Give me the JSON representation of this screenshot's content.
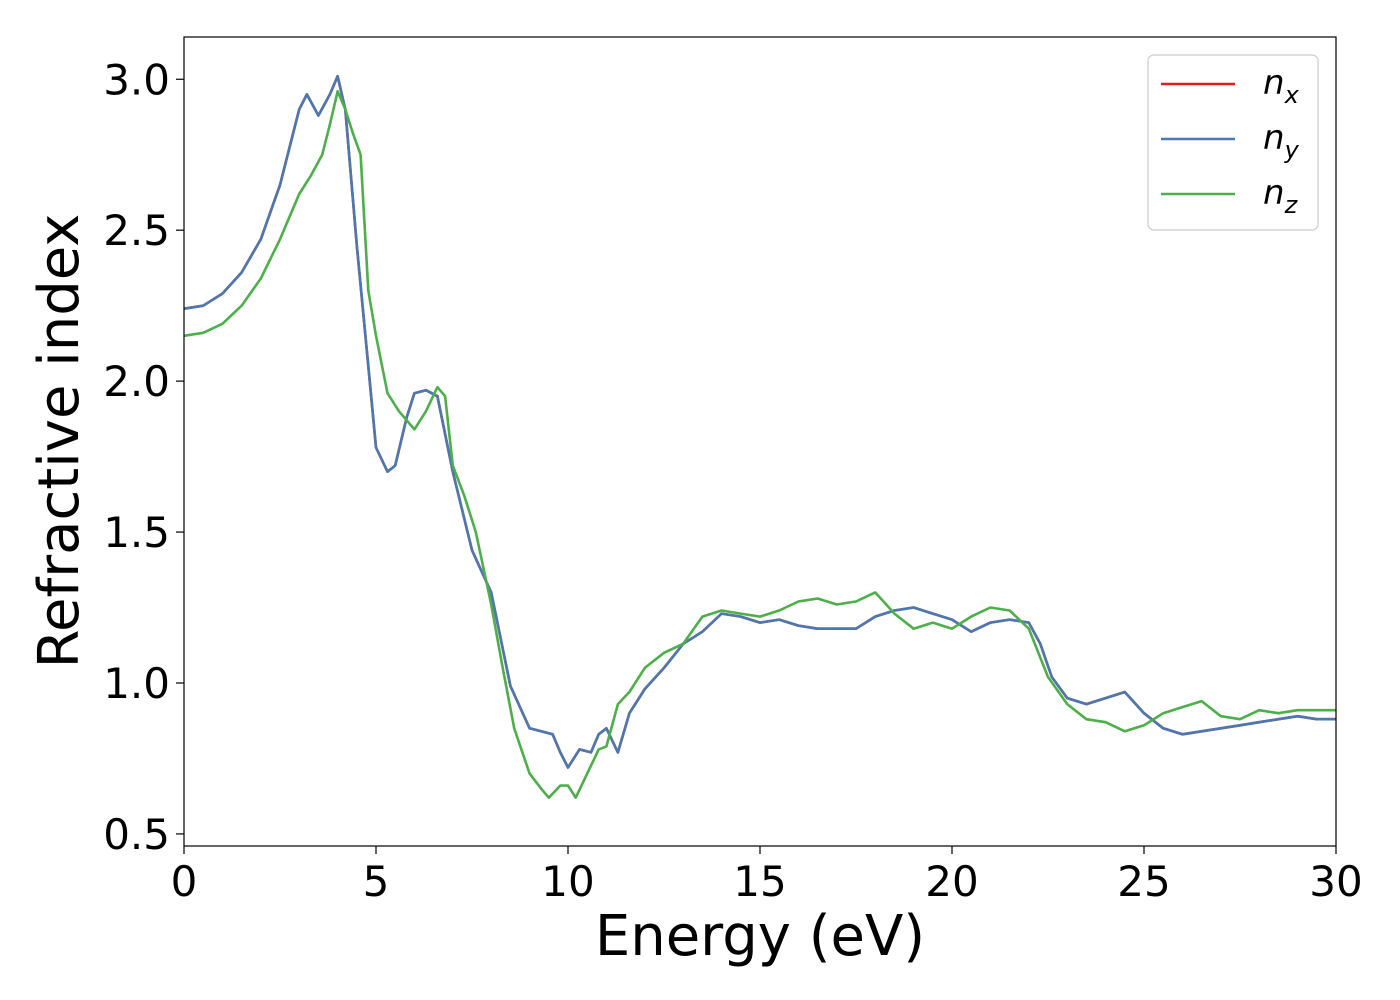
{
  "chart_data": {
    "type": "line",
    "title": "",
    "xlabel": "Energy (eV)",
    "ylabel": "Refractive index",
    "xlim": [
      0,
      30
    ],
    "ylim": [
      0.46,
      3.14
    ],
    "xticks": [
      0,
      5,
      10,
      15,
      20,
      25,
      30
    ],
    "xtick_labels": [
      "0",
      "5",
      "10",
      "15",
      "20",
      "25",
      "30"
    ],
    "yticks": [
      0.5,
      1.0,
      1.5,
      2.0,
      2.5,
      3.0
    ],
    "ytick_labels": [
      "0.5",
      "1.0",
      "1.5",
      "2.0",
      "2.5",
      "3.0"
    ],
    "grid": false,
    "legend_position": "top-right",
    "series": [
      {
        "name": "n_x",
        "legend_base": "n",
        "legend_sub": "x",
        "color": "#e41a1c",
        "x": [
          0,
          0.5,
          1.0,
          1.5,
          2.0,
          2.5,
          3.0,
          3.2,
          3.5,
          3.8,
          4.0,
          4.2,
          4.5,
          4.8,
          5.0,
          5.3,
          5.5,
          5.8,
          6.0,
          6.3,
          6.6,
          7.0,
          7.5,
          8.0,
          8.5,
          9.0,
          9.3,
          9.6,
          9.8,
          10.0,
          10.3,
          10.6,
          10.8,
          11.0,
          11.3,
          11.6,
          12.0,
          12.5,
          13.0,
          13.5,
          14.0,
          14.5,
          15.0,
          15.5,
          16.0,
          16.5,
          17.0,
          17.5,
          18.0,
          18.5,
          19.0,
          19.5,
          20.0,
          20.5,
          21.0,
          21.5,
          22.0,
          22.3,
          22.6,
          23.0,
          23.5,
          24.0,
          24.5,
          25.0,
          25.5,
          26.0,
          26.5,
          27.0,
          27.5,
          28.0,
          28.5,
          29.0,
          29.5,
          30.0
        ],
        "values": [
          2.24,
          2.25,
          2.29,
          2.36,
          2.47,
          2.65,
          2.9,
          2.95,
          2.88,
          2.95,
          3.01,
          2.9,
          2.45,
          2.05,
          1.78,
          1.7,
          1.72,
          1.88,
          1.96,
          1.97,
          1.95,
          1.7,
          1.44,
          1.3,
          0.99,
          0.85,
          0.84,
          0.83,
          0.77,
          0.72,
          0.78,
          0.77,
          0.83,
          0.85,
          0.77,
          0.9,
          0.98,
          1.05,
          1.13,
          1.17,
          1.23,
          1.22,
          1.2,
          1.21,
          1.19,
          1.18,
          1.18,
          1.18,
          1.22,
          1.24,
          1.25,
          1.23,
          1.21,
          1.17,
          1.2,
          1.21,
          1.2,
          1.13,
          1.02,
          0.95,
          0.93,
          0.95,
          0.97,
          0.9,
          0.85,
          0.83,
          0.84,
          0.85,
          0.86,
          0.87,
          0.88,
          0.89,
          0.88,
          0.88
        ]
      },
      {
        "name": "n_y",
        "legend_base": "n",
        "legend_sub": "y",
        "color": "#4a78b0",
        "x": [
          0,
          0.5,
          1.0,
          1.5,
          2.0,
          2.5,
          3.0,
          3.2,
          3.5,
          3.8,
          4.0,
          4.2,
          4.5,
          4.8,
          5.0,
          5.3,
          5.5,
          5.8,
          6.0,
          6.3,
          6.6,
          7.0,
          7.5,
          8.0,
          8.5,
          9.0,
          9.3,
          9.6,
          9.8,
          10.0,
          10.3,
          10.6,
          10.8,
          11.0,
          11.3,
          11.6,
          12.0,
          12.5,
          13.0,
          13.5,
          14.0,
          14.5,
          15.0,
          15.5,
          16.0,
          16.5,
          17.0,
          17.5,
          18.0,
          18.5,
          19.0,
          19.5,
          20.0,
          20.5,
          21.0,
          21.5,
          22.0,
          22.3,
          22.6,
          23.0,
          23.5,
          24.0,
          24.5,
          25.0,
          25.5,
          26.0,
          26.5,
          27.0,
          27.5,
          28.0,
          28.5,
          29.0,
          29.5,
          30.0
        ],
        "values": [
          2.24,
          2.25,
          2.29,
          2.36,
          2.47,
          2.65,
          2.9,
          2.95,
          2.88,
          2.95,
          3.01,
          2.9,
          2.45,
          2.05,
          1.78,
          1.7,
          1.72,
          1.88,
          1.96,
          1.97,
          1.95,
          1.7,
          1.44,
          1.3,
          0.99,
          0.85,
          0.84,
          0.83,
          0.77,
          0.72,
          0.78,
          0.77,
          0.83,
          0.85,
          0.77,
          0.9,
          0.98,
          1.05,
          1.13,
          1.17,
          1.23,
          1.22,
          1.2,
          1.21,
          1.19,
          1.18,
          1.18,
          1.18,
          1.22,
          1.24,
          1.25,
          1.23,
          1.21,
          1.17,
          1.2,
          1.21,
          1.2,
          1.13,
          1.02,
          0.95,
          0.93,
          0.95,
          0.97,
          0.9,
          0.85,
          0.83,
          0.84,
          0.85,
          0.86,
          0.87,
          0.88,
          0.89,
          0.88,
          0.88
        ]
      },
      {
        "name": "n_z",
        "legend_base": "n",
        "legend_sub": "z",
        "color": "#4daf4a",
        "x": [
          0,
          0.5,
          1.0,
          1.5,
          2.0,
          2.5,
          3.0,
          3.3,
          3.6,
          3.8,
          4.0,
          4.2,
          4.4,
          4.6,
          4.8,
          5.0,
          5.3,
          5.6,
          6.0,
          6.3,
          6.6,
          6.8,
          7.0,
          7.3,
          7.6,
          8.0,
          8.3,
          8.6,
          9.0,
          9.3,
          9.5,
          9.8,
          10.0,
          10.2,
          10.5,
          10.8,
          11.0,
          11.3,
          11.6,
          12.0,
          12.5,
          13.0,
          13.5,
          14.0,
          14.5,
          15.0,
          15.5,
          16.0,
          16.5,
          17.0,
          17.5,
          18.0,
          18.5,
          19.0,
          19.5,
          20.0,
          20.5,
          21.0,
          21.5,
          22.0,
          22.5,
          23.0,
          23.5,
          24.0,
          24.5,
          25.0,
          25.5,
          26.0,
          26.5,
          27.0,
          27.5,
          28.0,
          28.5,
          29.0,
          29.5,
          30.0
        ],
        "values": [
          2.15,
          2.16,
          2.19,
          2.25,
          2.34,
          2.47,
          2.62,
          2.68,
          2.75,
          2.85,
          2.96,
          2.9,
          2.82,
          2.75,
          2.3,
          2.15,
          1.96,
          1.9,
          1.84,
          1.9,
          1.98,
          1.95,
          1.72,
          1.62,
          1.5,
          1.26,
          1.05,
          0.85,
          0.7,
          0.65,
          0.62,
          0.66,
          0.66,
          0.62,
          0.7,
          0.78,
          0.79,
          0.93,
          0.97,
          1.05,
          1.1,
          1.13,
          1.22,
          1.24,
          1.23,
          1.22,
          1.24,
          1.27,
          1.28,
          1.26,
          1.27,
          1.3,
          1.23,
          1.18,
          1.2,
          1.18,
          1.22,
          1.25,
          1.24,
          1.18,
          1.02,
          0.93,
          0.88,
          0.87,
          0.84,
          0.86,
          0.9,
          0.92,
          0.94,
          0.89,
          0.88,
          0.91,
          0.9,
          0.91,
          0.91,
          0.91
        ]
      }
    ]
  }
}
